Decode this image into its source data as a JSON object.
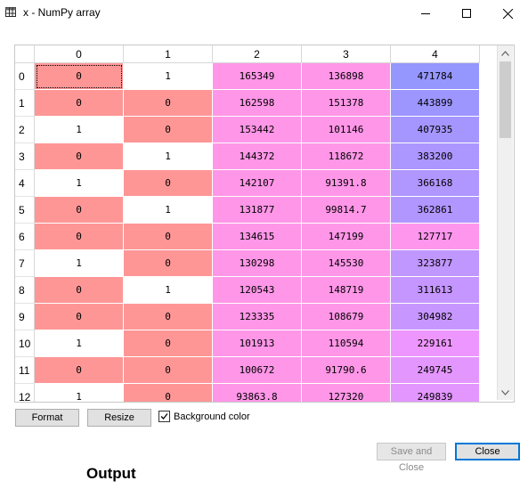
{
  "window": {
    "title": "x - NumPy array",
    "icons": {
      "app": "table-grid-icon",
      "minimize": "minimize-icon",
      "maximize": "maximize-icon",
      "close": "close-icon"
    }
  },
  "table": {
    "columns": [
      "0",
      "1",
      "2",
      "3",
      "4"
    ],
    "rows": [
      {
        "index": "0",
        "cells": [
          "0",
          "1",
          "165349",
          "136898",
          "471784"
        ],
        "colors": [
          "#ff9696",
          "#ffffff",
          "#ff96e8",
          "#ff96e8",
          "#9696ff"
        ]
      },
      {
        "index": "1",
        "cells": [
          "0",
          "0",
          "162598",
          "151378",
          "443899"
        ],
        "colors": [
          "#ff9696",
          "#ff9696",
          "#ff96e8",
          "#ff96e8",
          "#9d96ff"
        ]
      },
      {
        "index": "2",
        "cells": [
          "1",
          "0",
          "153442",
          "101146",
          "407935"
        ],
        "colors": [
          "#ffffff",
          "#ff9696",
          "#ff96e8",
          "#ff96e8",
          "#a596ff"
        ]
      },
      {
        "index": "3",
        "cells": [
          "0",
          "1",
          "144372",
          "118672",
          "383200"
        ],
        "colors": [
          "#ff9696",
          "#ffffff",
          "#ff96e8",
          "#ff96e8",
          "#ac96ff"
        ]
      },
      {
        "index": "4",
        "cells": [
          "1",
          "0",
          "142107",
          "91391.8",
          "366168"
        ],
        "colors": [
          "#ffffff",
          "#ff9696",
          "#ff96e8",
          "#ff96e8",
          "#b096ff"
        ]
      },
      {
        "index": "5",
        "cells": [
          "0",
          "1",
          "131877",
          "99814.7",
          "362861"
        ],
        "colors": [
          "#ff9696",
          "#ffffff",
          "#ff96e8",
          "#ff96e8",
          "#b196ff"
        ]
      },
      {
        "index": "6",
        "cells": [
          "0",
          "0",
          "134615",
          "147199",
          "127717"
        ],
        "colors": [
          "#ff9696",
          "#ff9696",
          "#ff96e8",
          "#ff96e8",
          "#ff96ee"
        ]
      },
      {
        "index": "7",
        "cells": [
          "1",
          "0",
          "130298",
          "145530",
          "323877"
        ],
        "colors": [
          "#ffffff",
          "#ff9696",
          "#ff96e8",
          "#ff96e8",
          "#c096ff"
        ]
      },
      {
        "index": "8",
        "cells": [
          "0",
          "1",
          "120543",
          "148719",
          "311613"
        ],
        "colors": [
          "#ff9696",
          "#ffffff",
          "#ff96e8",
          "#ff96e8",
          "#c596ff"
        ]
      },
      {
        "index": "9",
        "cells": [
          "0",
          "0",
          "123335",
          "108679",
          "304982"
        ],
        "colors": [
          "#ff9696",
          "#ff9696",
          "#ff96e8",
          "#ff96e8",
          "#c896ff"
        ]
      },
      {
        "index": "10",
        "cells": [
          "1",
          "0",
          "101913",
          "110594",
          "229161"
        ],
        "colors": [
          "#ffffff",
          "#ff9696",
          "#ff96e8",
          "#ff96e8",
          "#ee96ff"
        ]
      },
      {
        "index": "11",
        "cells": [
          "0",
          "0",
          "100672",
          "91790.6",
          "249745"
        ],
        "colors": [
          "#ff9696",
          "#ff9696",
          "#ff96e8",
          "#ff96e8",
          "#e496ff"
        ]
      },
      {
        "index": "12",
        "cells": [
          "1",
          "0",
          "93863.8",
          "127320",
          "249839"
        ],
        "colors": [
          "#ffffff",
          "#ff9696",
          "#ff96e8",
          "#ff96e8",
          "#e496ff"
        ]
      }
    ]
  },
  "controls": {
    "format_label": "Format",
    "resize_label": "Resize",
    "background_color_label": "Background color",
    "background_color_checked": true,
    "save_close_label": "Save and Close",
    "close_label": "Close"
  },
  "caption": "Output"
}
